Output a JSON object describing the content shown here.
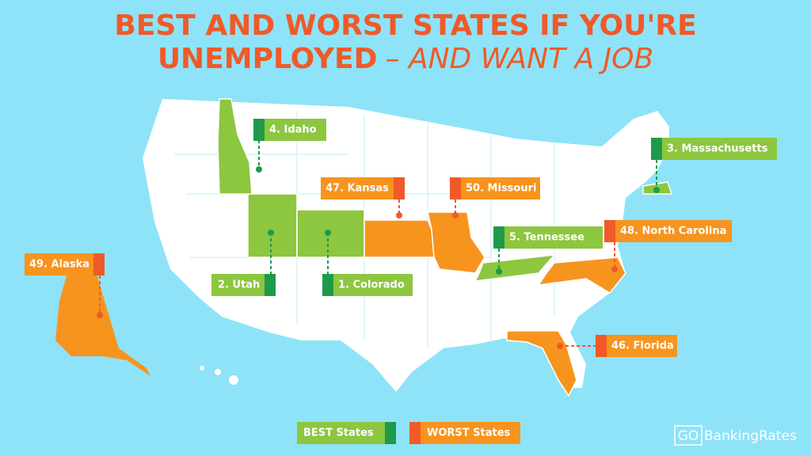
{
  "title": {
    "line1": "BEST AND WORST STATES IF YOU'RE",
    "line2_bold": "UNEMPLOYED",
    "line2_rest": "– AND WANT A JOB"
  },
  "labels": [
    "4. Idaho",
    "3. Massachusetts",
    "47. Kansas",
    "50. Missouri",
    "5. Tennessee",
    "48. North Carolina",
    "49. Alaska",
    "2. Utah",
    "1. Colorado",
    "46. Florida"
  ],
  "legend": [
    "BEST States",
    "WORST States"
  ],
  "logo": {
    "go": "GO",
    "rest": "BankingRates"
  }
}
